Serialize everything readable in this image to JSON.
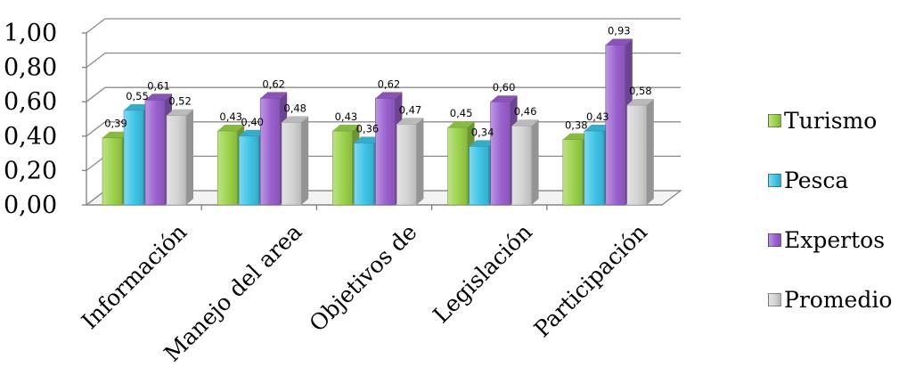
{
  "chart_data": {
    "type": "bar",
    "title": "",
    "xlabel": "",
    "ylabel": "",
    "ylim": [
      0,
      1
    ],
    "yticks": [
      "0,00",
      "0,20",
      "0,40",
      "0,60",
      "0,80",
      "1,00"
    ],
    "grid": true,
    "legend_position": "right",
    "categories": [
      "Información",
      "Manejo del area",
      "Objetivos de",
      "Legislación",
      "Participación"
    ],
    "series": [
      {
        "name": "Turismo",
        "color": "#9bd24a",
        "values": [
          0.39,
          0.43,
          0.43,
          0.45,
          0.38
        ],
        "labels": [
          "0,39",
          "0,43",
          "0,43",
          "0,45",
          "0,38"
        ]
      },
      {
        "name": "Pesca",
        "color": "#3fc4e6",
        "values": [
          0.55,
          0.4,
          0.36,
          0.34,
          0.43
        ],
        "labels": [
          "0,55",
          "0,40",
          "0,36",
          "0,34",
          "0,43"
        ]
      },
      {
        "name": "Expertos",
        "color": "#9a61cf",
        "values": [
          0.61,
          0.62,
          0.62,
          0.6,
          0.93
        ],
        "labels": [
          "0,61",
          "0,62",
          "0,62",
          "0,60",
          "0,93"
        ]
      },
      {
        "name": "Promedio",
        "color": "#d3d3d3",
        "values": [
          0.52,
          0.48,
          0.47,
          0.46,
          0.58
        ],
        "labels": [
          "0,52",
          "0,48",
          "0,47",
          "0,46",
          "0,58"
        ]
      }
    ]
  }
}
